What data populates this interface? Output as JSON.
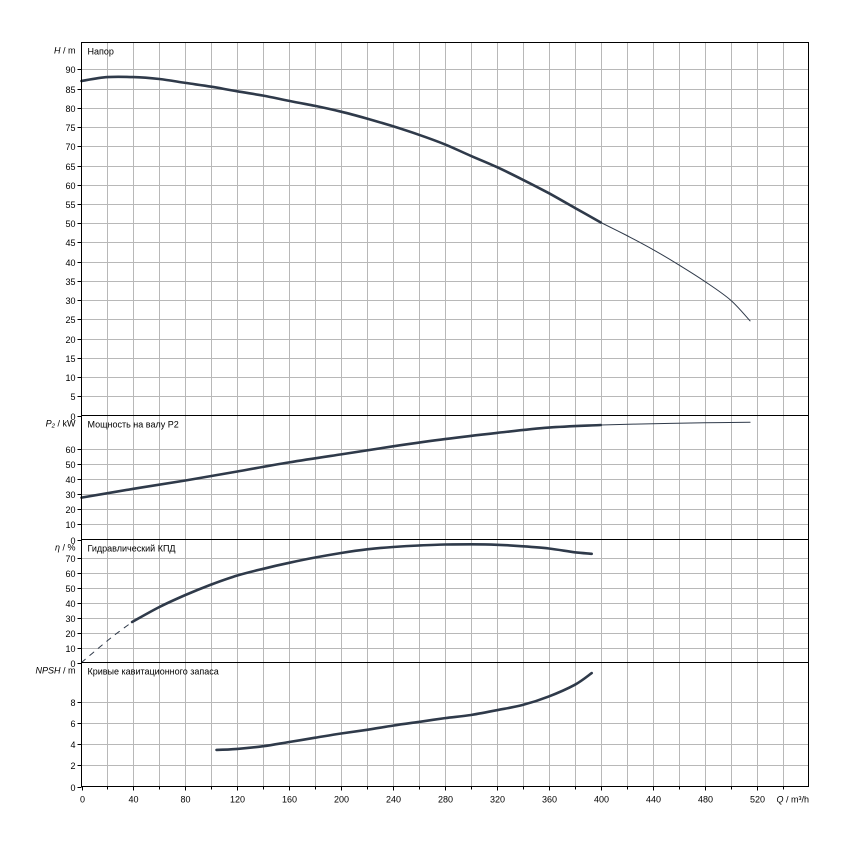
{
  "chart_data": {
    "type": "line",
    "x_axis": {
      "label_italic": "Q",
      "label_unit": "/ m³/h",
      "range": [
        0,
        560
      ],
      "ticks": [
        0,
        40,
        80,
        120,
        160,
        200,
        240,
        280,
        320,
        360,
        400,
        440,
        480,
        520
      ]
    },
    "panels": [
      {
        "id": "head",
        "title": "Напор",
        "y_label_italic": "H",
        "y_label_unit": " / m",
        "y_range": [
          0,
          97
        ],
        "y_ticks": [
          0,
          5,
          10,
          15,
          20,
          25,
          30,
          35,
          40,
          45,
          50,
          55,
          60,
          65,
          70,
          75,
          80,
          85,
          90
        ],
        "series": [
          {
            "x": [
              0,
              20,
              40,
              60,
              80,
              100,
              120,
              140,
              160,
              180,
              200,
              220,
              240,
              260,
              280,
              300,
              320,
              340,
              360,
              380,
              400
            ],
            "y": [
              87.0,
              88.0,
              88.0,
              87.5,
              86.5,
              85.5,
              84.3,
              83.2,
              81.8,
              80.5,
              79.0,
              77.2,
              75.2,
              73.0,
              70.5,
              67.5,
              64.6,
              61.3,
              57.8,
              54.0,
              50.2
            ],
            "style": "thick"
          },
          {
            "x": [
              400,
              420,
              440,
              460,
              480,
              500,
              515
            ],
            "y": [
              50.2,
              46.8,
              43.2,
              39.2,
              34.9,
              30.0,
              24.6
            ],
            "style": "thin"
          }
        ]
      },
      {
        "id": "power",
        "title": "Мощность на валу P2",
        "y_label_italic": "P₂",
        "y_label_unit": " / kW",
        "y_range": [
          0,
          82
        ],
        "y_ticks": [
          0,
          10,
          20,
          30,
          40,
          50,
          60
        ],
        "extra_tick_label": {
          "value": 76,
          "text": "kW"
        },
        "series": [
          {
            "x": [
              0,
              40,
              80,
              120,
              160,
              200,
              240,
              280,
              320,
              360,
              400
            ],
            "y": [
              27.7,
              33.5,
              39.0,
              45.0,
              51.0,
              56.3,
              61.6,
              66.4,
              70.5,
              74.0,
              75.7
            ],
            "style": "thick"
          },
          {
            "x": [
              400,
              440,
              480,
              515
            ],
            "y": [
              75.7,
              76.6,
              77.2,
              77.5
            ],
            "style": "thin"
          }
        ]
      },
      {
        "id": "efficiency",
        "title": "Гидравлический КПД",
        "y_label_italic": "η",
        "y_label_unit": " / %",
        "y_range": [
          0,
          82
        ],
        "y_ticks": [
          0,
          10,
          20,
          30,
          40,
          50,
          60,
          70
        ],
        "series": [
          {
            "x": [
              0,
              15,
              25,
              39
            ],
            "y": [
              0,
              11,
              18,
              27
            ],
            "style": "dashed"
          },
          {
            "x": [
              39,
              60,
              80,
              100,
              120,
              140,
              160,
              180,
              200,
              220,
              240,
              260,
              280,
              300,
              320,
              340,
              360,
              380,
              393
            ],
            "y": [
              27,
              37,
              45,
              52,
              58,
              62.5,
              66.5,
              70,
              73,
              75.5,
              77,
              78,
              78.7,
              78.8,
              78.5,
              77.5,
              76,
              73.5,
              72.5
            ],
            "style": "thick"
          }
        ]
      },
      {
        "id": "npsh",
        "title": "Кривые кавитационного запаса",
        "y_label_italic": "NPSH",
        "y_label_unit": " / m",
        "y_range": [
          0,
          11.7
        ],
        "y_ticks": [
          0,
          2,
          4,
          6,
          8
        ],
        "series": [
          {
            "x": [
              104,
              120,
              140,
              160,
              180,
              200,
              220,
              240,
              260,
              280,
              300,
              320,
              340,
              360,
              380,
              393
            ],
            "y": [
              3.45,
              3.55,
              3.8,
              4.2,
              4.6,
              5.0,
              5.35,
              5.75,
              6.1,
              6.45,
              6.75,
              7.2,
              7.7,
              8.5,
              9.6,
              10.7
            ],
            "style": "thick"
          }
        ]
      }
    ],
    "grid": true,
    "curve_color": "#2f3a4a",
    "grid_color": "#b8b8b8"
  }
}
